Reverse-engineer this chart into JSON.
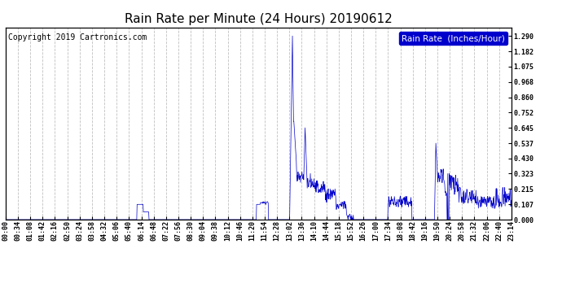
{
  "title": "Rain Rate per Minute (24 Hours) 20190612",
  "copyright": "Copyright 2019 Cartronics.com",
  "legend_label": "Rain Rate  (Inches/Hour)",
  "yticks": [
    0.0,
    0.107,
    0.215,
    0.323,
    0.43,
    0.537,
    0.645,
    0.752,
    0.86,
    0.968,
    1.075,
    1.182,
    1.29
  ],
  "ylim": [
    0.0,
    1.35
  ],
  "line_color": "#0000CC",
  "bg_color": "#FFFFFF",
  "grid_color": "#C0C0C0",
  "title_fontsize": 11,
  "copyright_fontsize": 7,
  "legend_fontsize": 7.5,
  "tick_fontsize": 6,
  "xtick_labels": [
    "00:00",
    "00:34",
    "01:08",
    "01:42",
    "02:16",
    "02:50",
    "03:24",
    "03:58",
    "04:32",
    "05:06",
    "05:40",
    "06:14",
    "06:48",
    "07:22",
    "07:56",
    "08:30",
    "09:04",
    "09:38",
    "10:12",
    "10:46",
    "11:20",
    "11:54",
    "12:28",
    "13:02",
    "13:36",
    "14:10",
    "14:44",
    "15:18",
    "15:52",
    "16:26",
    "17:00",
    "17:34",
    "18:08",
    "18:42",
    "19:16",
    "19:50",
    "20:24",
    "20:58",
    "21:32",
    "22:06",
    "22:40",
    "23:14"
  ],
  "num_minutes": 1440
}
